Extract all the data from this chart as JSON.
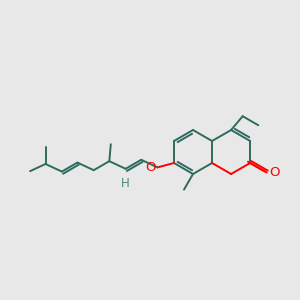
{
  "bg_color": "#e8e8e8",
  "bond_color": "#2d6b5e",
  "o_color": "#ff0000",
  "h_color": "#4a8a7a",
  "lw": 1.4,
  "fs": 9.5,
  "rb": 22
}
